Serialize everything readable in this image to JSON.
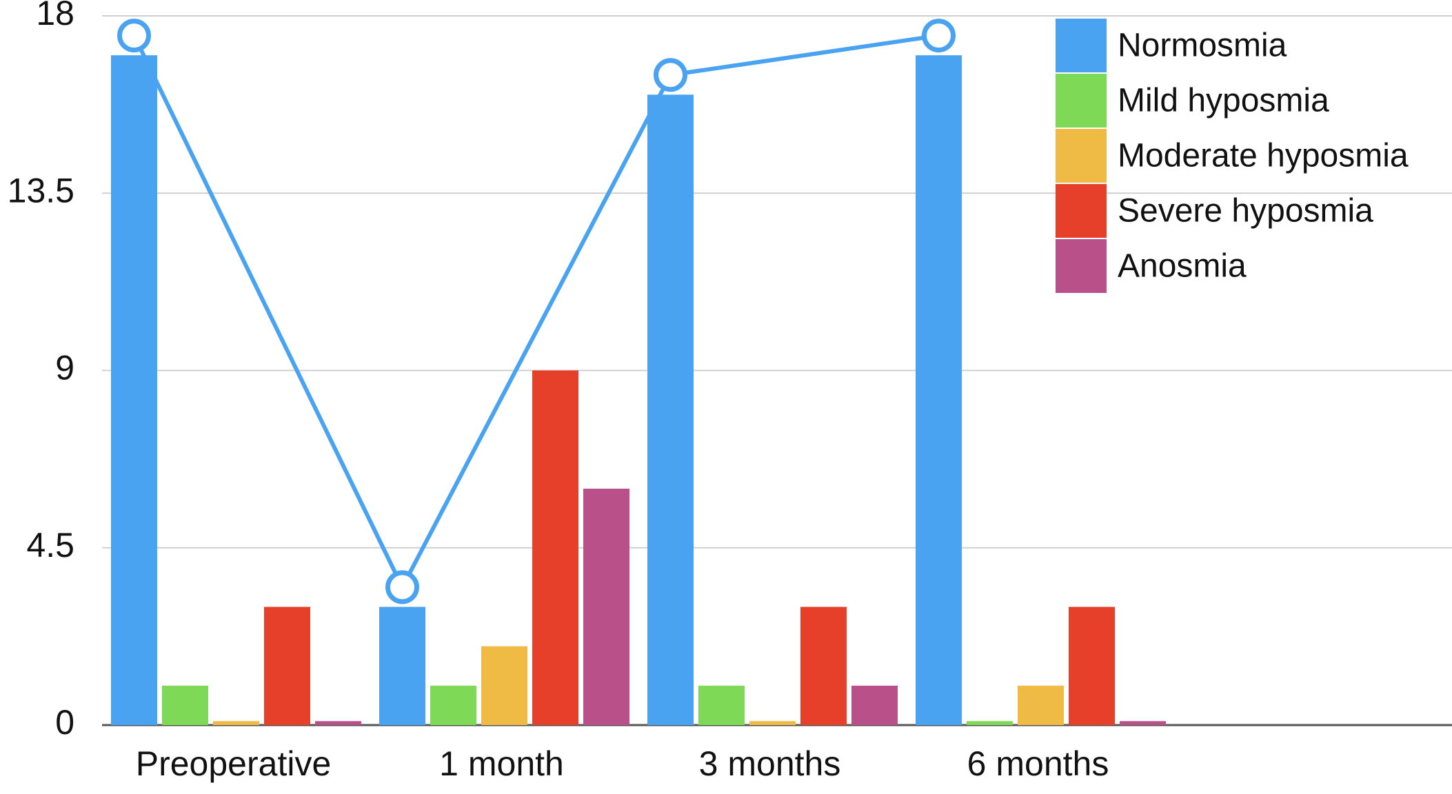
{
  "chart_data": {
    "type": "bar",
    "categories": [
      "Preoperative",
      "1 month",
      "3 months",
      "6 months",
      null
    ],
    "series": [
      {
        "name": "Normosmia",
        "color": "#4aa3f0",
        "values": [
          17,
          3,
          16,
          17,
          null
        ]
      },
      {
        "name": "Mild hyposmia",
        "color": "#7ed957",
        "values": [
          1,
          1,
          1,
          0.1,
          null
        ]
      },
      {
        "name": "Moderate hyposmia",
        "color": "#f0bb44",
        "values": [
          0.1,
          2,
          0.1,
          1,
          null
        ]
      },
      {
        "name": "Severe hyposmia",
        "color": "#e6402a",
        "values": [
          3,
          9,
          3,
          3,
          null
        ]
      },
      {
        "name": "Anosmia",
        "color": "#b9508a",
        "values": [
          0.1,
          6,
          1,
          0.1,
          null
        ]
      }
    ],
    "line": {
      "color": "#4aa3f0",
      "values": [
        17.5,
        3.5,
        16.5,
        17.5,
        null
      ]
    },
    "ylim": [
      0,
      18
    ],
    "yticks": [
      0,
      4.5,
      9,
      13.5,
      18
    ],
    "grid": true,
    "legend": "top-right"
  }
}
